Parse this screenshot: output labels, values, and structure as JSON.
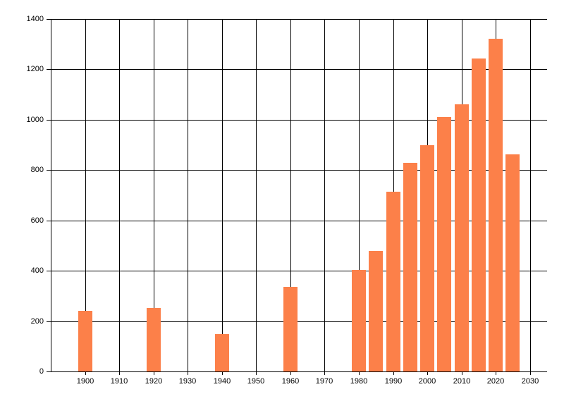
{
  "chart_data": {
    "type": "bar",
    "title": "",
    "xlabel": "",
    "ylabel": "",
    "x": [
      1900,
      1920,
      1940,
      1960,
      1980,
      1985,
      1990,
      1995,
      2000,
      2005,
      2010,
      2015,
      2020,
      2025
    ],
    "values": [
      240,
      253,
      148,
      337,
      403,
      478,
      713,
      828,
      898,
      1012,
      1060,
      1242,
      1323,
      862
    ],
    "x_ticks": [
      1900,
      1910,
      1920,
      1930,
      1940,
      1950,
      1960,
      1970,
      1980,
      1990,
      2000,
      2010,
      2020,
      2030
    ],
    "y_ticks": [
      0,
      200,
      400,
      600,
      800,
      1000,
      1200,
      1400
    ],
    "xlim": [
      1890,
      2035
    ],
    "ylim": [
      0,
      1400
    ],
    "grid": true,
    "legend": "none",
    "bar_color": "#FC8049",
    "grid_color": "#000000",
    "label_color": "#000000",
    "background_color": "#FFFFFF"
  }
}
